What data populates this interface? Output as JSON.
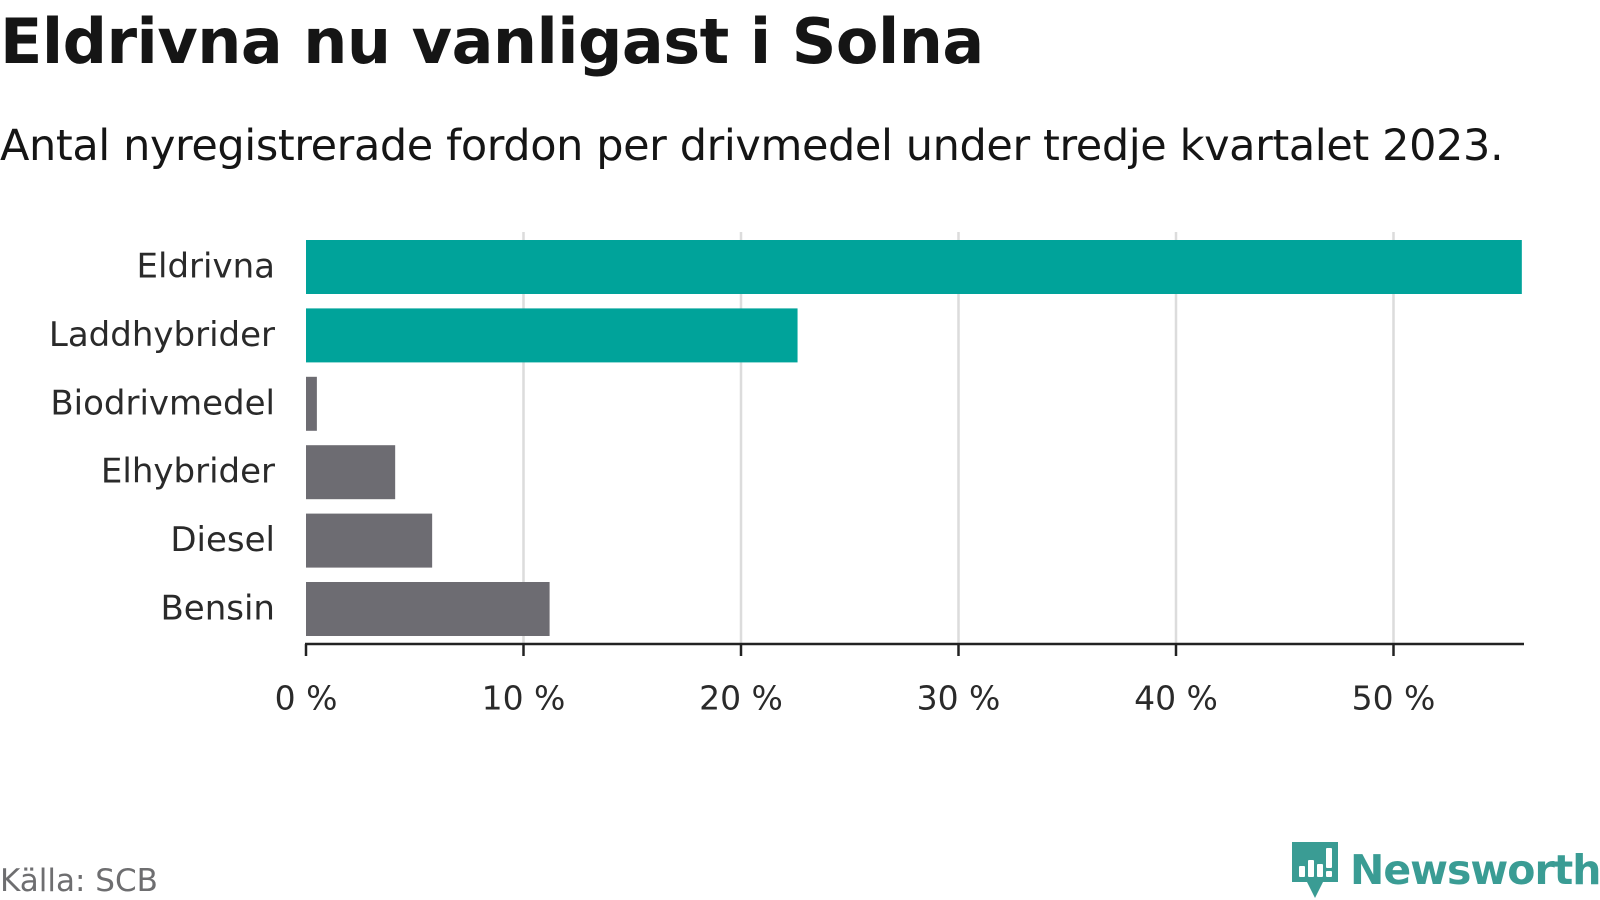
{
  "header": {
    "title": "Eldrivna nu vanligast i Solna",
    "subtitle": "Antal nyregistrerade fordon per drivmedel under tredje kvartalet 2023."
  },
  "footer": {
    "source": "Källa: SCB",
    "brand": "Newsworthy"
  },
  "colors": {
    "highlight": "#00a39a",
    "neutral": "#6d6c72",
    "grid": "#dcdcdc",
    "axis": "#222222",
    "brand": "#3a9c94"
  },
  "chart_data": {
    "type": "bar",
    "orientation": "horizontal",
    "title": "Eldrivna nu vanligast i Solna",
    "subtitle": "Antal nyregistrerade fordon per drivmedel under tredje kvartalet 2023.",
    "xlabel": "",
    "ylabel": "",
    "xlim": [
      0,
      56
    ],
    "grid": true,
    "categories": [
      "Eldrivna",
      "Laddhybrider",
      "Biodrivmedel",
      "Elhybrider",
      "Diesel",
      "Bensin"
    ],
    "values": [
      55.9,
      22.6,
      0.5,
      4.1,
      5.8,
      11.2
    ],
    "highlighted": [
      true,
      true,
      false,
      false,
      false,
      false
    ],
    "x_ticks": [
      0,
      10,
      20,
      30,
      40,
      50
    ],
    "x_tick_labels": [
      "0 %",
      "10 %",
      "20 %",
      "30 %",
      "40 %",
      "50 %"
    ]
  }
}
